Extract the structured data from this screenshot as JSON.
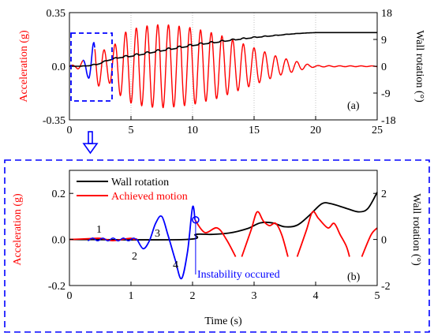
{
  "colors": {
    "accel": "#ff0000",
    "rotation": "#000000",
    "highlight": "#0000ff",
    "frame": "#0000ff"
  },
  "chart_data": [
    {
      "panel_label": "(a)",
      "type": "line",
      "xlim": [
        0,
        25
      ],
      "ylim": [
        -0.35,
        0.35
      ],
      "y2lim": [
        -18,
        18
      ],
      "xticks": [
        "0",
        "5",
        "10",
        "15",
        "20",
        "25"
      ],
      "yticks": [
        "-0.35",
        "0.0",
        "0.35"
      ],
      "y2ticks": [
        "-18",
        "-9",
        "0",
        "9",
        "18"
      ],
      "ylabel": "Acceleration (g)",
      "y2label": "Wall rotation (°)",
      "grid": true,
      "series": [
        {
          "axis": "left",
          "x": [
            0,
            0.5,
            1,
            1.5,
            2,
            2.5,
            3,
            3.5,
            4,
            4.5,
            5,
            6,
            7,
            8,
            9,
            10,
            11,
            12,
            13,
            14,
            15,
            16,
            17,
            18,
            19,
            19.5,
            20,
            22,
            25
          ],
          "amplitude": [
            0.005,
            0.01,
            0.03,
            0.07,
            0.16,
            0.12,
            0.1,
            0.12,
            0.18,
            0.22,
            0.24,
            0.26,
            0.27,
            0.27,
            0.26,
            0.25,
            0.23,
            0.21,
            0.18,
            0.15,
            0.12,
            0.09,
            0.06,
            0.04,
            0.02,
            0.01,
            0.005,
            0.003,
            0.002
          ],
          "cycles_per_unit": 1.15
        },
        {
          "axis": "right",
          "x": [
            0,
            1,
            2,
            2.5,
            3,
            4,
            5,
            6,
            7,
            8,
            9,
            10,
            11,
            12,
            13,
            14,
            15,
            16,
            17,
            18,
            19,
            19.5,
            20,
            22,
            25
          ],
          "y": [
            0,
            0,
            0.3,
            0.9,
            1.8,
            2.8,
            3.3,
            4.0,
            4.8,
            5.5,
            6.2,
            6.9,
            7.5,
            8.0,
            8.6,
            9.1,
            9.6,
            10.0,
            10.4,
            10.8,
            11.1,
            11.2,
            11.3,
            11.3,
            11.3
          ],
          "ripple": 0.6
        }
      ],
      "highlight_x": [
        0,
        3.5
      ]
    },
    {
      "panel_label": "(b)",
      "type": "line",
      "xlim": [
        0,
        5
      ],
      "ylim": [
        -0.2,
        0.3
      ],
      "y2lim": [
        -2,
        3
      ],
      "xticks": [
        "0",
        "1",
        "2",
        "3",
        "4",
        "5"
      ],
      "yticks": [
        "-0.2",
        "0.0",
        "0.2"
      ],
      "y2ticks": [
        "-2",
        "0",
        "2"
      ],
      "xlabel": "Time (s)",
      "ylabel": "Acceleration (g)",
      "y2label": "Wall rotation (°)",
      "legend": [
        "Wall rotation",
        "Achieved motion"
      ],
      "legend_position": "top-left",
      "annotations": [
        "1",
        "2",
        "3",
        "4",
        "Instability occured"
      ],
      "instability_time": 2.05,
      "series": [
        {
          "name": "Wall rotation",
          "axis": "right",
          "x": [
            0,
            1.9,
            2.05,
            2.3,
            2.6,
            2.9,
            3.1,
            3.3,
            3.5,
            3.7,
            3.9,
            4.1,
            4.25,
            4.5,
            4.7,
            4.85,
            5
          ],
          "y": [
            0,
            0,
            0.22,
            0.22,
            0.28,
            0.48,
            0.72,
            0.72,
            0.55,
            0.62,
            1.05,
            1.55,
            1.55,
            1.35,
            1.2,
            1.35,
            2.05
          ]
        },
        {
          "name": "Achieved motion",
          "axis": "left",
          "color": "red",
          "x": [
            0,
            0.3,
            0.5,
            0.7,
            0.9,
            1.0,
            1.05,
            1.1
          ],
          "y": [
            0,
            0.003,
            0.005,
            -0.005,
            0.002,
            0.005,
            0.0,
            0.003
          ]
        },
        {
          "axis": "left",
          "color": "blue",
          "x": [
            1.1,
            1.2,
            1.3,
            1.4,
            1.5,
            1.6,
            1.72,
            1.82,
            1.92,
            2.0,
            2.04
          ],
          "y": [
            0.0,
            -0.04,
            -0.005,
            0.07,
            0.1,
            0.02,
            -0.09,
            -0.17,
            -0.05,
            0.14,
            0.085
          ]
        },
        {
          "axis": "left",
          "color": "red",
          "x": [
            2.04,
            2.2,
            2.4,
            2.55,
            2.7
          ],
          "y": [
            0.085,
            0.03,
            0.05,
            0.0,
            -0.075
          ]
        },
        {
          "axis": "left",
          "color": "red",
          "x": [
            2.8,
            2.95,
            3.05,
            3.15,
            3.25,
            3.35,
            3.45,
            3.55
          ],
          "y": [
            -0.075,
            0.04,
            0.12,
            0.08,
            0.06,
            0.07,
            0.02,
            -0.075
          ]
        },
        {
          "axis": "left",
          "color": "red",
          "x": [
            3.7,
            3.85,
            3.95,
            4.05,
            4.2,
            4.3,
            4.4,
            4.5,
            4.55
          ],
          "y": [
            -0.075,
            0.04,
            0.12,
            0.09,
            0.05,
            0.07,
            0.02,
            -0.03,
            -0.075
          ]
        },
        {
          "axis": "left",
          "color": "red",
          "x": [
            4.75,
            4.9,
            5.0
          ],
          "y": [
            -0.075,
            0.02,
            0.05
          ]
        }
      ]
    }
  ]
}
